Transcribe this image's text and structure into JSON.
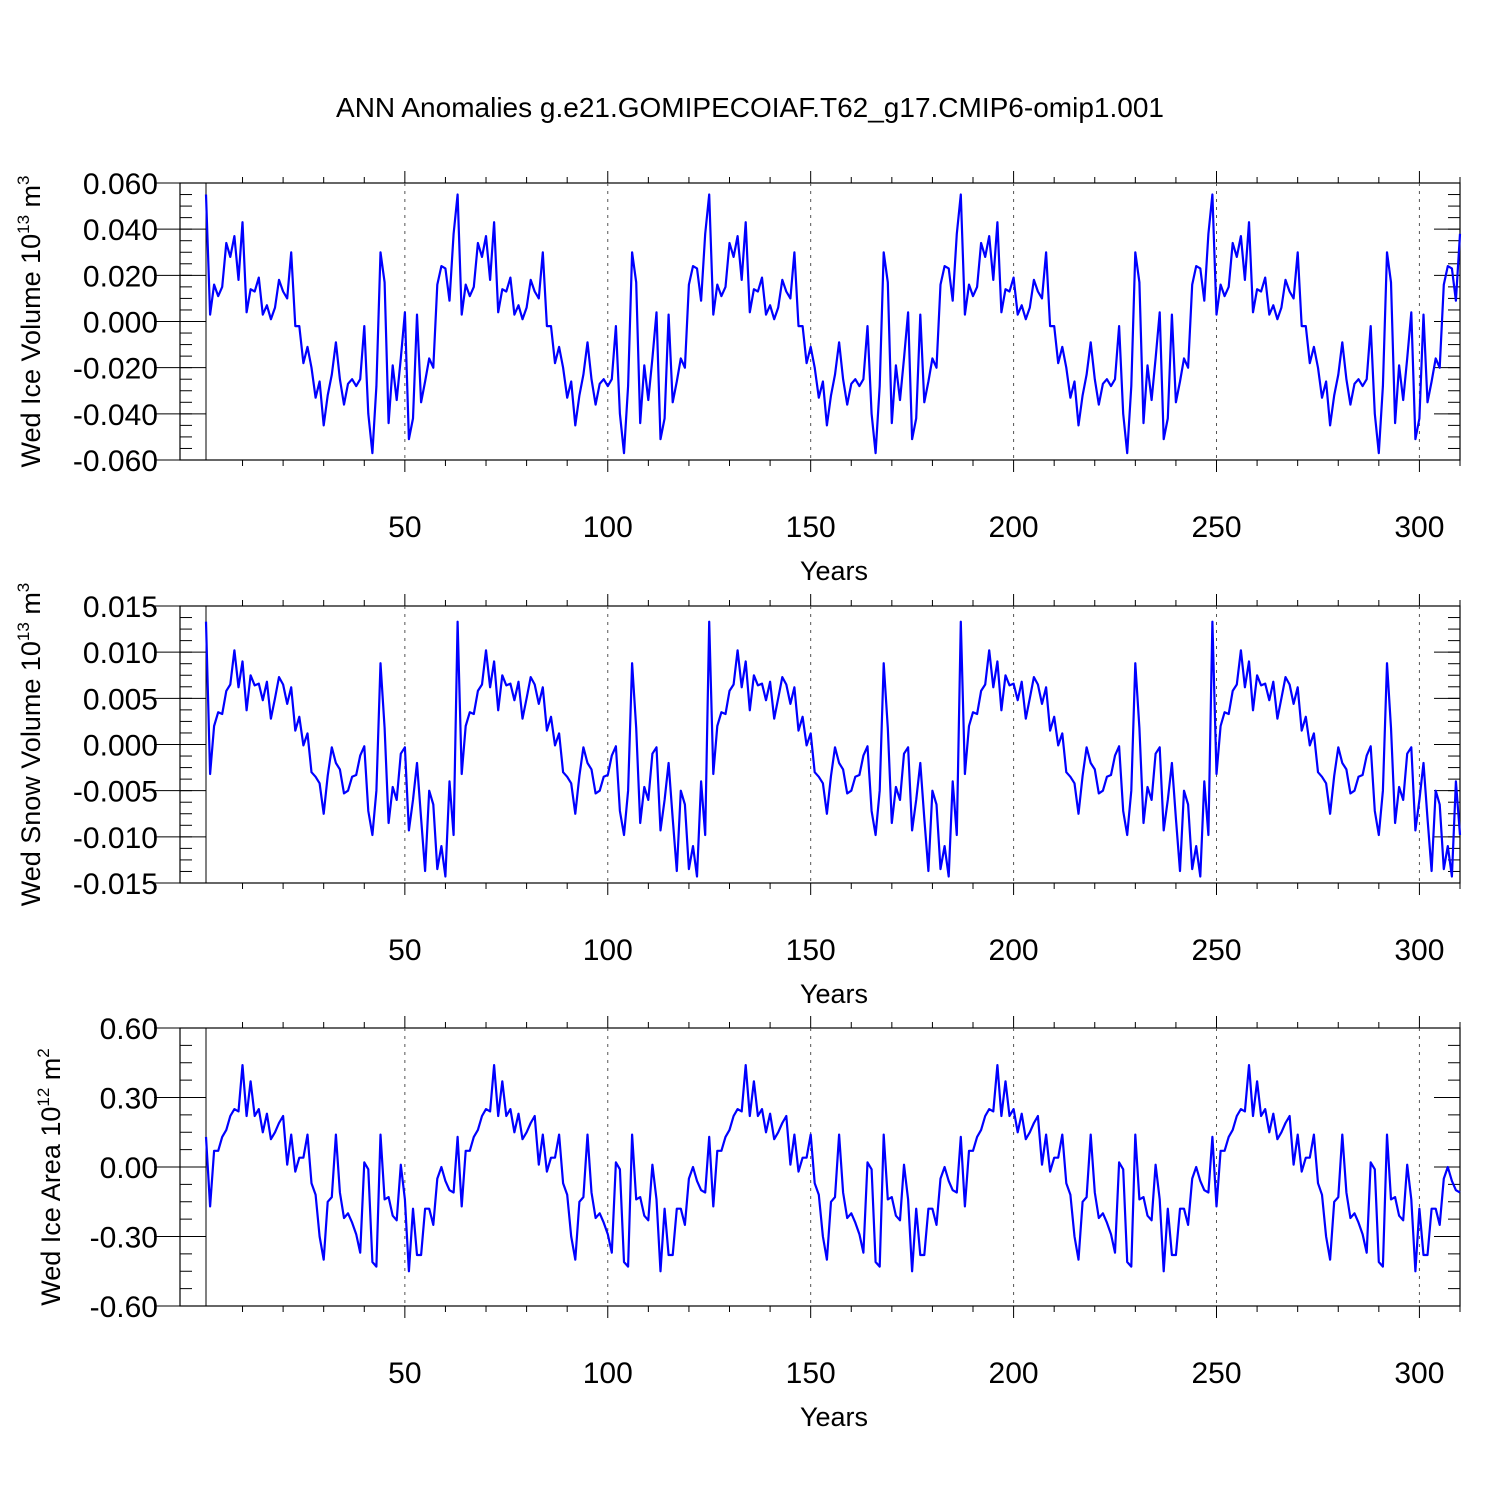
{
  "title": "ANN Anomalies g.e21.GOMIPECOIAF.T62_g17.CMIP6-omip1.001",
  "colors": {
    "series": "#0000ff",
    "axis": "#000000",
    "refline": "#555555"
  },
  "chart_data": [
    {
      "type": "line",
      "ylabel_main": "Wed Ice Volume 10",
      "ylabel_exp": "13",
      "ylabel_unit": " m",
      "ylabel_unit_exp": "3",
      "xlabel": "Years",
      "xlim": [
        1,
        310
      ],
      "ylim": [
        -0.06,
        0.06
      ],
      "yticks": [
        "0.060",
        "0.040",
        "0.020",
        "0.000",
        "-0.020",
        "-0.040",
        "-0.060"
      ],
      "ytick_values": [
        0.06,
        0.04,
        0.02,
        0.0,
        -0.02,
        -0.04,
        -0.06
      ],
      "xticks": [
        "50",
        "100",
        "150",
        "200",
        "250",
        "300"
      ],
      "xtick_values": [
        50,
        100,
        150,
        200,
        250,
        300
      ],
      "period": 62,
      "cycle": [
        0.055,
        0.003,
        0.016,
        0.011,
        0.015,
        0.034,
        0.028,
        0.037,
        0.018,
        0.043,
        0.004,
        0.014,
        0.013,
        0.019,
        0.003,
        0.007,
        0.001,
        0.006,
        0.018,
        0.013,
        0.01,
        0.03,
        -0.002,
        -0.002,
        -0.018,
        -0.011,
        -0.02,
        -0.033,
        -0.026,
        -0.045,
        -0.032,
        -0.023,
        -0.009,
        -0.025,
        -0.036,
        -0.027,
        -0.025,
        -0.028,
        -0.025,
        -0.002,
        -0.04,
        -0.057,
        -0.028,
        0.03,
        0.017,
        -0.044,
        -0.019,
        -0.034,
        -0.016,
        0.004,
        -0.051,
        -0.042,
        0.003,
        -0.035,
        -0.026,
        -0.016,
        -0.02,
        0.016,
        0.024,
        0.023,
        0.009,
        0.038
      ]
    },
    {
      "type": "line",
      "ylabel_main": "Wed Snow Volume 10",
      "ylabel_exp": "13",
      "ylabel_unit": " m",
      "ylabel_unit_exp": "3",
      "xlabel": "Years",
      "xlim": [
        1,
        310
      ],
      "ylim": [
        -0.015,
        0.015
      ],
      "yticks": [
        "0.015",
        "0.010",
        "0.005",
        "0.000",
        "-0.005",
        "-0.010",
        "-0.015"
      ],
      "ytick_values": [
        0.015,
        0.01,
        0.005,
        0.0,
        -0.005,
        -0.01,
        -0.015
      ],
      "xticks": [
        "50",
        "100",
        "150",
        "200",
        "250",
        "300"
      ],
      "xtick_values": [
        50,
        100,
        150,
        200,
        250,
        300
      ],
      "period": 62,
      "cycle": [
        0.0133,
        -0.0032,
        0.002,
        0.0035,
        0.0033,
        0.0058,
        0.0065,
        0.0102,
        0.0062,
        0.009,
        0.0037,
        0.0075,
        0.0064,
        0.0066,
        0.0048,
        0.0068,
        0.0028,
        0.005,
        0.0073,
        0.0065,
        0.0044,
        0.0062,
        0.0015,
        0.003,
        -0.0001,
        0.0012,
        -0.003,
        -0.0035,
        -0.0042,
        -0.0075,
        -0.0034,
        -0.0003,
        -0.002,
        -0.0027,
        -0.0053,
        -0.005,
        -0.0035,
        -0.0033,
        -0.0012,
        -0.0002,
        -0.0072,
        -0.0098,
        -0.005,
        0.0088,
        0.0018,
        -0.0085,
        -0.0046,
        -0.006,
        -0.001,
        -0.0003,
        -0.0093,
        -0.006,
        -0.002,
        -0.008,
        -0.0137,
        -0.005,
        -0.0065,
        -0.0135,
        -0.011,
        -0.0143,
        -0.004,
        -0.0098
      ]
    },
    {
      "type": "line",
      "ylabel_main": "Wed Ice Area 10",
      "ylabel_exp": "12",
      "ylabel_unit": " m",
      "ylabel_unit_exp": "2",
      "xlabel": "Years",
      "xlim": [
        1,
        310
      ],
      "ylim": [
        -0.6,
        0.6
      ],
      "yticks": [
        "0.60",
        "0.30",
        "0.00",
        "-0.30",
        "-0.60"
      ],
      "ytick_values": [
        0.6,
        0.3,
        0.0,
        -0.3,
        -0.6
      ],
      "xticks": [
        "50",
        "100",
        "150",
        "200",
        "250",
        "300"
      ],
      "xtick_values": [
        50,
        100,
        150,
        200,
        250,
        300
      ],
      "period": 62,
      "cycle": [
        0.13,
        -0.17,
        0.07,
        0.07,
        0.13,
        0.16,
        0.22,
        0.25,
        0.24,
        0.44,
        0.22,
        0.37,
        0.22,
        0.25,
        0.15,
        0.23,
        0.12,
        0.15,
        0.19,
        0.22,
        0.01,
        0.14,
        -0.02,
        0.04,
        0.04,
        0.14,
        -0.07,
        -0.12,
        -0.3,
        -0.4,
        -0.15,
        -0.13,
        0.14,
        -0.11,
        -0.22,
        -0.2,
        -0.24,
        -0.29,
        -0.37,
        0.02,
        -0.01,
        -0.41,
        -0.43,
        0.14,
        -0.14,
        -0.13,
        -0.21,
        -0.23,
        0.01,
        -0.14,
        -0.45,
        -0.18,
        -0.38,
        -0.38,
        -0.18,
        -0.18,
        -0.25,
        -0.05,
        0.0,
        -0.06,
        -0.1,
        -0.11
      ]
    }
  ]
}
